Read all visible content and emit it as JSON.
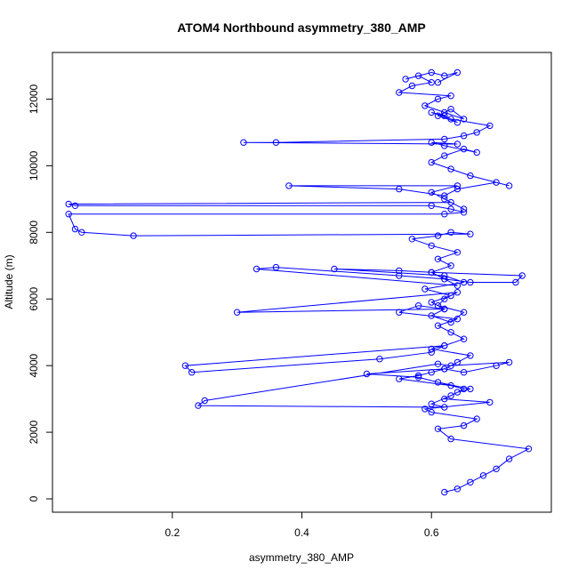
{
  "chart_data": {
    "type": "scatter",
    "title": "ATOM4 Northbound asymmetry_380_AMP",
    "xlabel": "asymmetry_380_AMP",
    "ylabel": "Altitude (m)",
    "xlim": [
      0.015,
      0.785
    ],
    "ylim": [
      -400,
      13400
    ],
    "x_ticks": [
      0.2,
      0.4,
      0.6
    ],
    "x_tick_labels": [
      "0.2",
      "0.4",
      "0.6"
    ],
    "y_ticks": [
      0,
      2000,
      4000,
      6000,
      8000,
      10000,
      12000
    ],
    "y_tick_labels": [
      "0",
      "2000",
      "4000",
      "6000",
      "8000",
      "10000",
      "12000"
    ],
    "grid": false,
    "legend": "none",
    "marker": "open-circle",
    "connect_points": true,
    "color": "#0000ff",
    "series": [
      {
        "x": [
          0.62,
          0.64,
          0.66,
          0.68,
          0.7,
          0.72,
          0.75,
          0.63,
          0.61,
          0.65,
          0.67,
          0.6,
          0.59,
          0.69,
          0.62,
          0.64,
          0.66,
          0.61,
          0.63,
          0.55,
          0.58,
          0.6,
          0.62,
          0.65,
          0.7,
          0.72,
          0.63,
          0.61,
          0.25,
          0.24,
          0.62,
          0.6,
          0.63,
          0.65,
          0.58,
          0.5,
          0.62,
          0.64,
          0.66,
          0.6,
          0.62,
          0.22,
          0.23,
          0.52,
          0.6,
          0.62,
          0.65,
          0.63,
          0.61,
          0.64,
          0.55,
          0.58,
          0.62,
          0.6,
          0.63,
          0.65,
          0.61,
          0.62,
          0.64,
          0.3,
          0.62,
          0.6,
          0.63,
          0.59,
          0.65,
          0.62,
          0.45,
          0.55,
          0.6,
          0.62,
          0.64,
          0.33,
          0.36,
          0.55,
          0.62,
          0.66,
          0.73,
          0.74,
          0.6,
          0.63,
          0.61,
          0.64,
          0.6,
          0.57,
          0.61,
          0.63,
          0.66,
          0.14,
          0.06,
          0.05,
          0.04,
          0.62,
          0.65,
          0.63,
          0.6,
          0.05,
          0.04,
          0.63,
          0.65,
          0.62,
          0.6,
          0.64,
          0.38,
          0.55,
          0.62,
          0.64,
          0.7,
          0.72,
          0.66,
          0.63,
          0.6,
          0.62,
          0.65,
          0.67,
          0.62,
          0.6,
          0.64,
          0.31,
          0.36,
          0.62,
          0.65,
          0.67,
          0.69,
          0.63,
          0.6,
          0.62,
          0.64,
          0.61,
          0.63,
          0.65,
          0.62,
          0.59,
          0.61,
          0.63,
          0.55,
          0.57,
          0.6,
          0.58,
          0.56,
          0.6,
          0.62,
          0.64,
          0.61
        ],
        "y": [
          200,
          300,
          500,
          700,
          900,
          1200,
          1500,
          1800,
          2100,
          2200,
          2400,
          2600,
          2700,
          2900,
          3000,
          3200,
          3300,
          3500,
          3400,
          3600,
          3700,
          3800,
          3900,
          3800,
          4000,
          4100,
          4000,
          4050,
          2950,
          2800,
          2750,
          2850,
          3100,
          3300,
          3650,
          3750,
          3900,
          4100,
          4300,
          4500,
          4600,
          4000,
          3800,
          4200,
          4400,
          4600,
          4800,
          5000,
          5200,
          5400,
          5600,
          5800,
          5700,
          5500,
          5300,
          5600,
          5800,
          6000,
          6200,
          5600,
          5700,
          5900,
          6100,
          6300,
          6500,
          6700,
          6900,
          6850,
          6800,
          6600,
          6400,
          6900,
          6950,
          6700,
          6600,
          6500,
          6500,
          6700,
          6800,
          7000,
          7200,
          7400,
          7600,
          7800,
          7900,
          8000,
          7950,
          7900,
          8000,
          8100,
          8550,
          8550,
          8600,
          8700,
          8800,
          8800,
          8850,
          8900,
          8700,
          9000,
          9200,
          9400,
          9400,
          9300,
          9100,
          9300,
          9500,
          9400,
          9700,
          9900,
          10100,
          10300,
          10500,
          10400,
          10600,
          10700,
          10650,
          10700,
          10700,
          10800,
          10900,
          11000,
          11200,
          11400,
          11600,
          11500,
          11300,
          11500,
          11700,
          11400,
          11600,
          11800,
          12000,
          12100,
          12200,
          12400,
          12500,
          12700,
          12600,
          12800,
          12700,
          12800,
          12500
        ]
      }
    ]
  }
}
